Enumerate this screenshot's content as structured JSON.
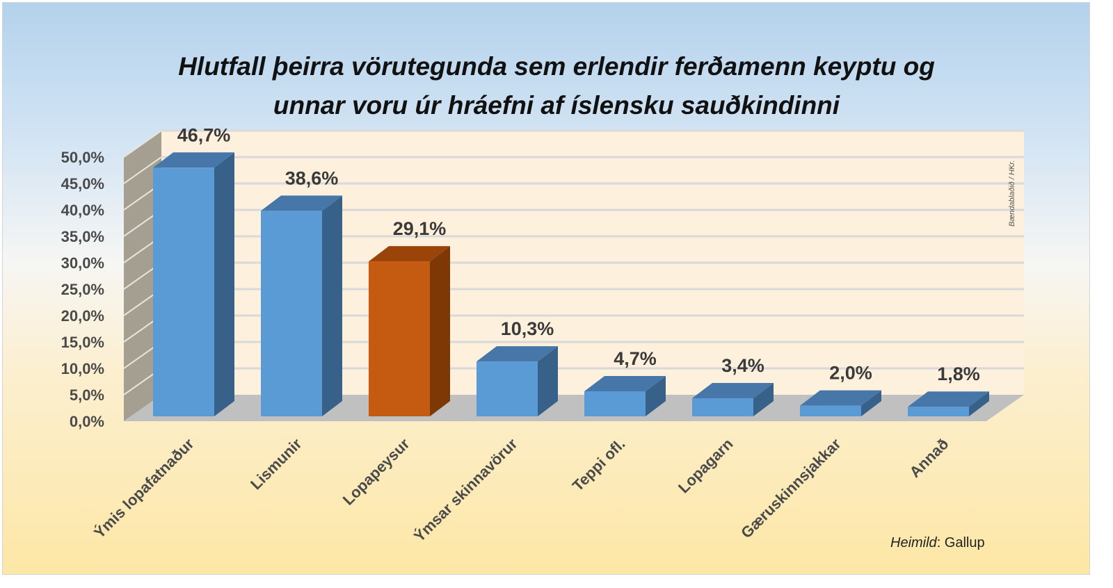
{
  "title": {
    "line1": "Hlutfall þeirra vörutegunda sem erlendir ferðamenn keyptu og",
    "line2": "unnar voru úr hráefni af íslensku sauðkindinni"
  },
  "watermark": "Bændablaðið / HKr.",
  "source": {
    "label": "Heimild",
    "value": ": Gallup"
  },
  "colors": {
    "bar_front": "#5b9bd5",
    "bar_top": "#4677a8",
    "bar_side": "#386189",
    "highlight_front": "#c55a11",
    "highlight_top": "#9a4409",
    "highlight_side": "#7e3806",
    "back_wall": "#fdf0dc",
    "side_wall": "#a59f92",
    "floor": "#c0c0c0",
    "gridline": "#d9d9d9"
  },
  "chart_data": {
    "type": "bar",
    "style": "3d-column",
    "title": "Hlutfall þeirra vörutegunda sem erlendir ferðamenn keyptu og unnar voru úr hráefni af íslensku sauðkindinni",
    "categories": [
      "Ýmis lopafatnaður",
      "Lismunir",
      "Lopapeysur",
      "Ýmsar skinnavörur",
      "Teppi ofl.",
      "Lopagarn",
      "Gæruskinnsjakkar",
      "Annað"
    ],
    "values": [
      46.7,
      38.6,
      29.1,
      10.3,
      4.7,
      3.4,
      2.0,
      1.8
    ],
    "data_labels": [
      "46,7%",
      "38,6%",
      "29,1%",
      "10,3%",
      "4,7%",
      "3,4%",
      "2,0%",
      "1,8%"
    ],
    "highlighted_index": 2,
    "yticks": [
      "0,0%",
      "5,0%",
      "10,0%",
      "15,0%",
      "20,0%",
      "25,0%",
      "30,0%",
      "35,0%",
      "40,0%",
      "45,0%",
      "50,0%"
    ],
    "ylim": [
      0,
      50
    ],
    "xlabel": "",
    "ylabel": "",
    "grid": true,
    "legend": "none",
    "source": "Heimild: Gallup"
  }
}
